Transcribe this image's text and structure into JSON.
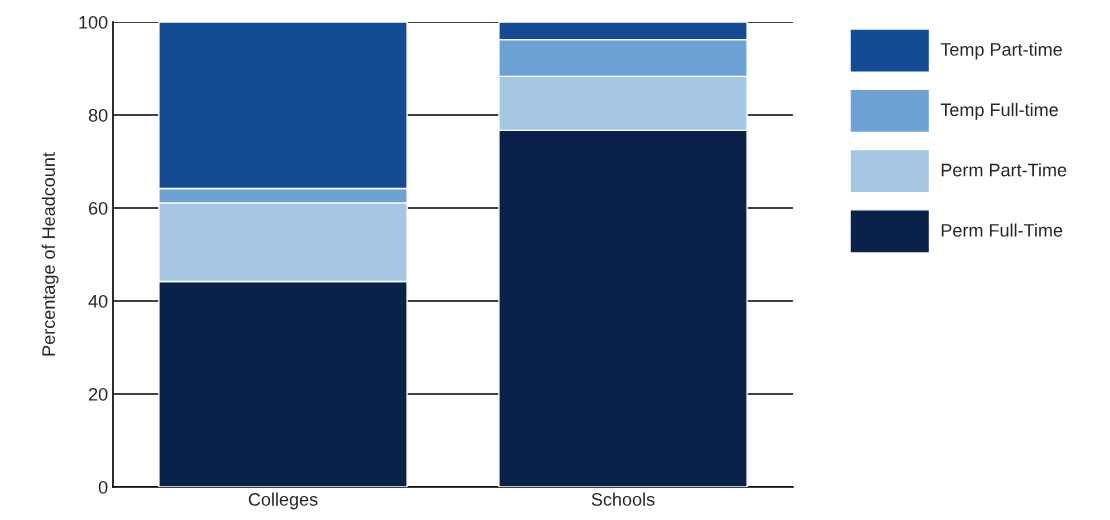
{
  "chart_data": {
    "type": "bar",
    "stacked": true,
    "ylabel": "Percentage of Headcount",
    "categories": [
      "Colleges",
      "Schools"
    ],
    "series": [
      {
        "name": "Perm Full-Time",
        "color": "#0a2149",
        "values": [
          44.2,
          76.7
        ]
      },
      {
        "name": "Perm Part-Time",
        "color": "#a5c7e4",
        "values": [
          16.9,
          11.6
        ]
      },
      {
        "name": "Temp Full-time",
        "color": "#6ca3d4",
        "values": [
          3.1,
          7.9
        ]
      },
      {
        "name": "Temp Part-time",
        "color": "#144b95",
        "values": [
          35.8,
          3.8
        ]
      }
    ],
    "ylim": [
      0,
      100
    ],
    "yticks": [
      0,
      20,
      40,
      60,
      80,
      100
    ],
    "grid": "y",
    "legend": "right"
  }
}
